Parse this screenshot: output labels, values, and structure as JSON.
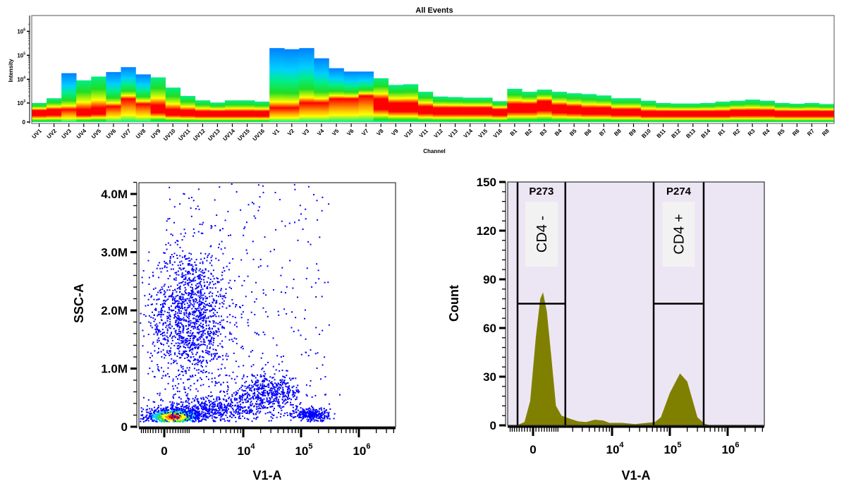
{
  "chart_data": [
    {
      "type": "heatmap",
      "title": "All Events",
      "xlabel": "Channel",
      "ylabel": "Intensity",
      "yscale": "biexponential",
      "yticks": [
        {
          "base": "0",
          "exp": ""
        },
        {
          "base": "10",
          "exp": "3"
        },
        {
          "base": "10",
          "exp": "4"
        },
        {
          "base": "10",
          "exp": "5"
        },
        {
          "base": "10",
          "exp": "6"
        }
      ],
      "ytick_values": [
        0,
        1000,
        10000,
        100000,
        1000000
      ],
      "colormap": [
        "#0080ff",
        "#00d0ff",
        "#00ee88",
        "#22dd22",
        "#ffff00",
        "#ff9900",
        "#ff0000"
      ],
      "channels": [
        {
          "name": "UV1",
          "max": 1000,
          "mode": 450
        },
        {
          "name": "UV2",
          "max": 1600,
          "mode": 500
        },
        {
          "name": "UV3",
          "max": 18000,
          "mode": 500
        },
        {
          "name": "UV4",
          "max": 9000,
          "mode": 500
        },
        {
          "name": "UV5",
          "max": 13000,
          "mode": 600
        },
        {
          "name": "UV6",
          "max": 20000,
          "mode": 700
        },
        {
          "name": "UV7",
          "max": 32000,
          "mode": 1500
        },
        {
          "name": "UV8",
          "max": 16000,
          "mode": 900
        },
        {
          "name": "UV9",
          "max": 12000,
          "mode": 800
        },
        {
          "name": "UV10",
          "max": 4500,
          "mode": 500
        },
        {
          "name": "UV11",
          "max": 2000,
          "mode": 450
        },
        {
          "name": "UV12",
          "max": 1300,
          "mode": 400
        },
        {
          "name": "UV13",
          "max": 1050,
          "mode": 400
        },
        {
          "name": "UV14",
          "max": 1300,
          "mode": 400
        },
        {
          "name": "UV15",
          "max": 1300,
          "mode": 400
        },
        {
          "name": "UV16",
          "max": 1150,
          "mode": 400
        },
        {
          "name": "V1",
          "max": 200000,
          "mode": 600
        },
        {
          "name": "V2",
          "max": 180000,
          "mode": 600
        },
        {
          "name": "V3",
          "max": 200000,
          "mode": 1000
        },
        {
          "name": "V4",
          "max": 75000,
          "mode": 1000
        },
        {
          "name": "V5",
          "max": 29000,
          "mode": 1500
        },
        {
          "name": "V6",
          "max": 21000,
          "mode": 1500
        },
        {
          "name": "V7",
          "max": 21000,
          "mode": 2000
        },
        {
          "name": "V8",
          "max": 11000,
          "mode": 1500
        },
        {
          "name": "V9",
          "max": 5800,
          "mode": 1000
        },
        {
          "name": "V10",
          "max": 6200,
          "mode": 1000
        },
        {
          "name": "V11",
          "max": 3000,
          "mode": 700
        },
        {
          "name": "V12",
          "max": 1900,
          "mode": 600
        },
        {
          "name": "V13",
          "max": 1800,
          "mode": 600
        },
        {
          "name": "V14",
          "max": 1700,
          "mode": 600
        },
        {
          "name": "V15",
          "max": 1700,
          "mode": 600
        },
        {
          "name": "V16",
          "max": 1200,
          "mode": 500
        },
        {
          "name": "B1",
          "max": 4000,
          "mode": 900
        },
        {
          "name": "B2",
          "max": 3000,
          "mode": 900
        },
        {
          "name": "B3",
          "max": 3700,
          "mode": 1200
        },
        {
          "name": "B4",
          "max": 3000,
          "mode": 800
        },
        {
          "name": "B5",
          "max": 2600,
          "mode": 700
        },
        {
          "name": "B6",
          "max": 2400,
          "mode": 600
        },
        {
          "name": "B7",
          "max": 2100,
          "mode": 600
        },
        {
          "name": "B8",
          "max": 1600,
          "mode": 500
        },
        {
          "name": "B9",
          "max": 1600,
          "mode": 500
        },
        {
          "name": "B10",
          "max": 1250,
          "mode": 400
        },
        {
          "name": "B11",
          "max": 1000,
          "mode": 400
        },
        {
          "name": "B12",
          "max": 950,
          "mode": 400
        },
        {
          "name": "B13",
          "max": 950,
          "mode": 400
        },
        {
          "name": "B14",
          "max": 1000,
          "mode": 400
        },
        {
          "name": "R1",
          "max": 1150,
          "mode": 400
        },
        {
          "name": "R2",
          "max": 1250,
          "mode": 450
        },
        {
          "name": "R3",
          "max": 1400,
          "mode": 450
        },
        {
          "name": "R4",
          "max": 1250,
          "mode": 450
        },
        {
          "name": "R5",
          "max": 1000,
          "mode": 400
        },
        {
          "name": "R6",
          "max": 930,
          "mode": 400
        },
        {
          "name": "R7",
          "max": 1000,
          "mode": 400
        },
        {
          "name": "R8",
          "max": 900,
          "mode": 400
        }
      ]
    },
    {
      "type": "scatter",
      "xlabel": "V1-A",
      "ylabel": "SSC-A",
      "xscale": "biexponential",
      "xlim": [
        -1030,
        4300000
      ],
      "ylim": [
        0,
        4200000
      ],
      "xticks": [
        {
          "base": "0",
          "exp": ""
        },
        {
          "base": "10",
          "exp": "4"
        },
        {
          "base": "10",
          "exp": "5"
        },
        {
          "base": "10",
          "exp": "6"
        }
      ],
      "xtick_values": [
        0,
        10000,
        100000,
        1000000
      ],
      "yticks": [
        "0",
        "1.0M",
        "2.0M",
        "3.0M",
        "4.0M"
      ],
      "ytick_values": [
        0,
        1000000,
        2000000,
        3000000,
        4000000
      ],
      "point_color": "#0000ff",
      "populations": [
        {
          "x": 300,
          "y": 180000,
          "x_sd_decades": 0.25,
          "y_sd": 80000,
          "n": 900,
          "density_colored": true
        },
        {
          "x": 1000,
          "y": 1900000,
          "x_sd_decades": 0.35,
          "y_sd": 600000,
          "n": 1400
        },
        {
          "x": 3000,
          "y": 300000,
          "x_sd_decades": 0.6,
          "y_sd": 120000,
          "n": 600
        },
        {
          "x": 25000,
          "y": 600000,
          "x_sd_decades": 0.3,
          "y_sd": 150000,
          "n": 450
        },
        {
          "x": 150000,
          "y": 220000,
          "x_sd_decades": 0.15,
          "y_sd": 60000,
          "n": 300
        },
        {
          "x_range": [
            100,
            300000
          ],
          "y_range": [
            100000,
            4200000
          ],
          "n": 350
        }
      ]
    },
    {
      "type": "area",
      "xlabel": "V1-A",
      "ylabel": "Count",
      "xscale": "biexponential",
      "xlim": [
        -1030,
        4300000
      ],
      "ylim": [
        0,
        150
      ],
      "xticks": [
        {
          "base": "0",
          "exp": ""
        },
        {
          "base": "10",
          "exp": "4"
        },
        {
          "base": "10",
          "exp": "5"
        },
        {
          "base": "10",
          "exp": "6"
        }
      ],
      "xtick_values": [
        0,
        10000,
        100000,
        1000000
      ],
      "yticks": [
        "0",
        "30",
        "60",
        "90",
        "120",
        "150"
      ],
      "ytick_values": [
        0,
        30,
        60,
        90,
        120,
        150
      ],
      "fill_color": "#808000",
      "background_color": "#ece6f4",
      "x": [
        -600,
        -300,
        -100,
        100,
        250,
        350,
        500,
        700,
        900,
        1200,
        1800,
        2500,
        3500,
        5000,
        7000,
        9000,
        15000,
        25000,
        40000,
        55000,
        70000,
        100000,
        150000,
        200000,
        250000,
        300000,
        400000,
        500000
      ],
      "y": [
        0,
        2,
        15,
        55,
        78,
        82,
        70,
        40,
        12,
        6,
        4,
        2.5,
        2,
        3.5,
        3,
        1.5,
        1.5,
        0.8,
        1.5,
        2,
        5,
        20,
        32,
        27,
        15,
        5,
        1,
        0
      ],
      "gates": [
        {
          "name": "P273",
          "label": "CD4 -",
          "x_min": -567,
          "x_max": 1440,
          "y": 75
        },
        {
          "name": "P274",
          "label": "CD4 +",
          "x_min": 52500,
          "x_max": 385000,
          "y": 75
        }
      ]
    }
  ]
}
